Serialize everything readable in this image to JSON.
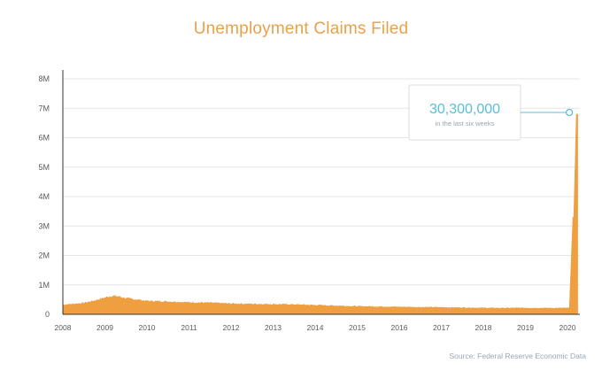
{
  "chart_data": {
    "type": "area",
    "title": "Unemployment Claims Filed",
    "source": "Source: Federal Reserve Economic Data",
    "colors": {
      "area": "#ef9f3f",
      "title": "#e7a24b",
      "callout": "#59bfd6",
      "grid": "#e6e6e6"
    },
    "xlabel": "",
    "ylabel": "",
    "y_ticks": [
      {
        "value": 0,
        "label": "0"
      },
      {
        "value": 1000000,
        "label": "1M"
      },
      {
        "value": 2000000,
        "label": "2M"
      },
      {
        "value": 3000000,
        "label": "3M"
      },
      {
        "value": 4000000,
        "label": "4M"
      },
      {
        "value": 5000000,
        "label": "5M"
      },
      {
        "value": 6000000,
        "label": "6M"
      },
      {
        "value": 7000000,
        "label": "7M"
      },
      {
        "value": 8000000,
        "label": "8M"
      }
    ],
    "x_ticks": [
      "2008",
      "2009",
      "2010",
      "2011",
      "2012",
      "2013",
      "2014",
      "2015",
      "2016",
      "2017",
      "2018",
      "2019",
      "2020"
    ],
    "xlim": [
      "2008-01",
      "2020-05"
    ],
    "ylim": [
      0,
      8000000
    ],
    "grid": true,
    "series": [
      {
        "x": [
          "2008-01",
          "2008-04",
          "2008-07",
          "2008-10",
          "2009-01",
          "2009-03",
          "2009-04",
          "2009-05",
          "2009-07",
          "2009-10",
          "2010-01",
          "2010-04",
          "2010-07",
          "2010-10",
          "2011-01",
          "2011-07",
          "2012-01",
          "2012-07",
          "2013-01",
          "2013-07",
          "2014-01",
          "2014-07",
          "2015-01",
          "2015-07",
          "2016-01",
          "2016-07",
          "2017-01",
          "2017-07",
          "2018-01",
          "2018-07",
          "2019-01",
          "2019-07",
          "2020-01",
          "2020-02",
          "2020-03",
          "2020-04"
        ],
        "values": [
          320000,
          350000,
          380000,
          460000,
          560000,
          620000,
          610000,
          600000,
          540000,
          500000,
          450000,
          440000,
          430000,
          420000,
          400000,
          390000,
          360000,
          350000,
          340000,
          330000,
          310000,
          290000,
          270000,
          260000,
          250000,
          240000,
          235000,
          225000,
          215000,
          210000,
          215000,
          210000,
          210000,
          210000,
          3300000,
          6800000
        ]
      }
    ],
    "callout": {
      "value": "30,300,000",
      "text": "in the last six weeks"
    }
  }
}
